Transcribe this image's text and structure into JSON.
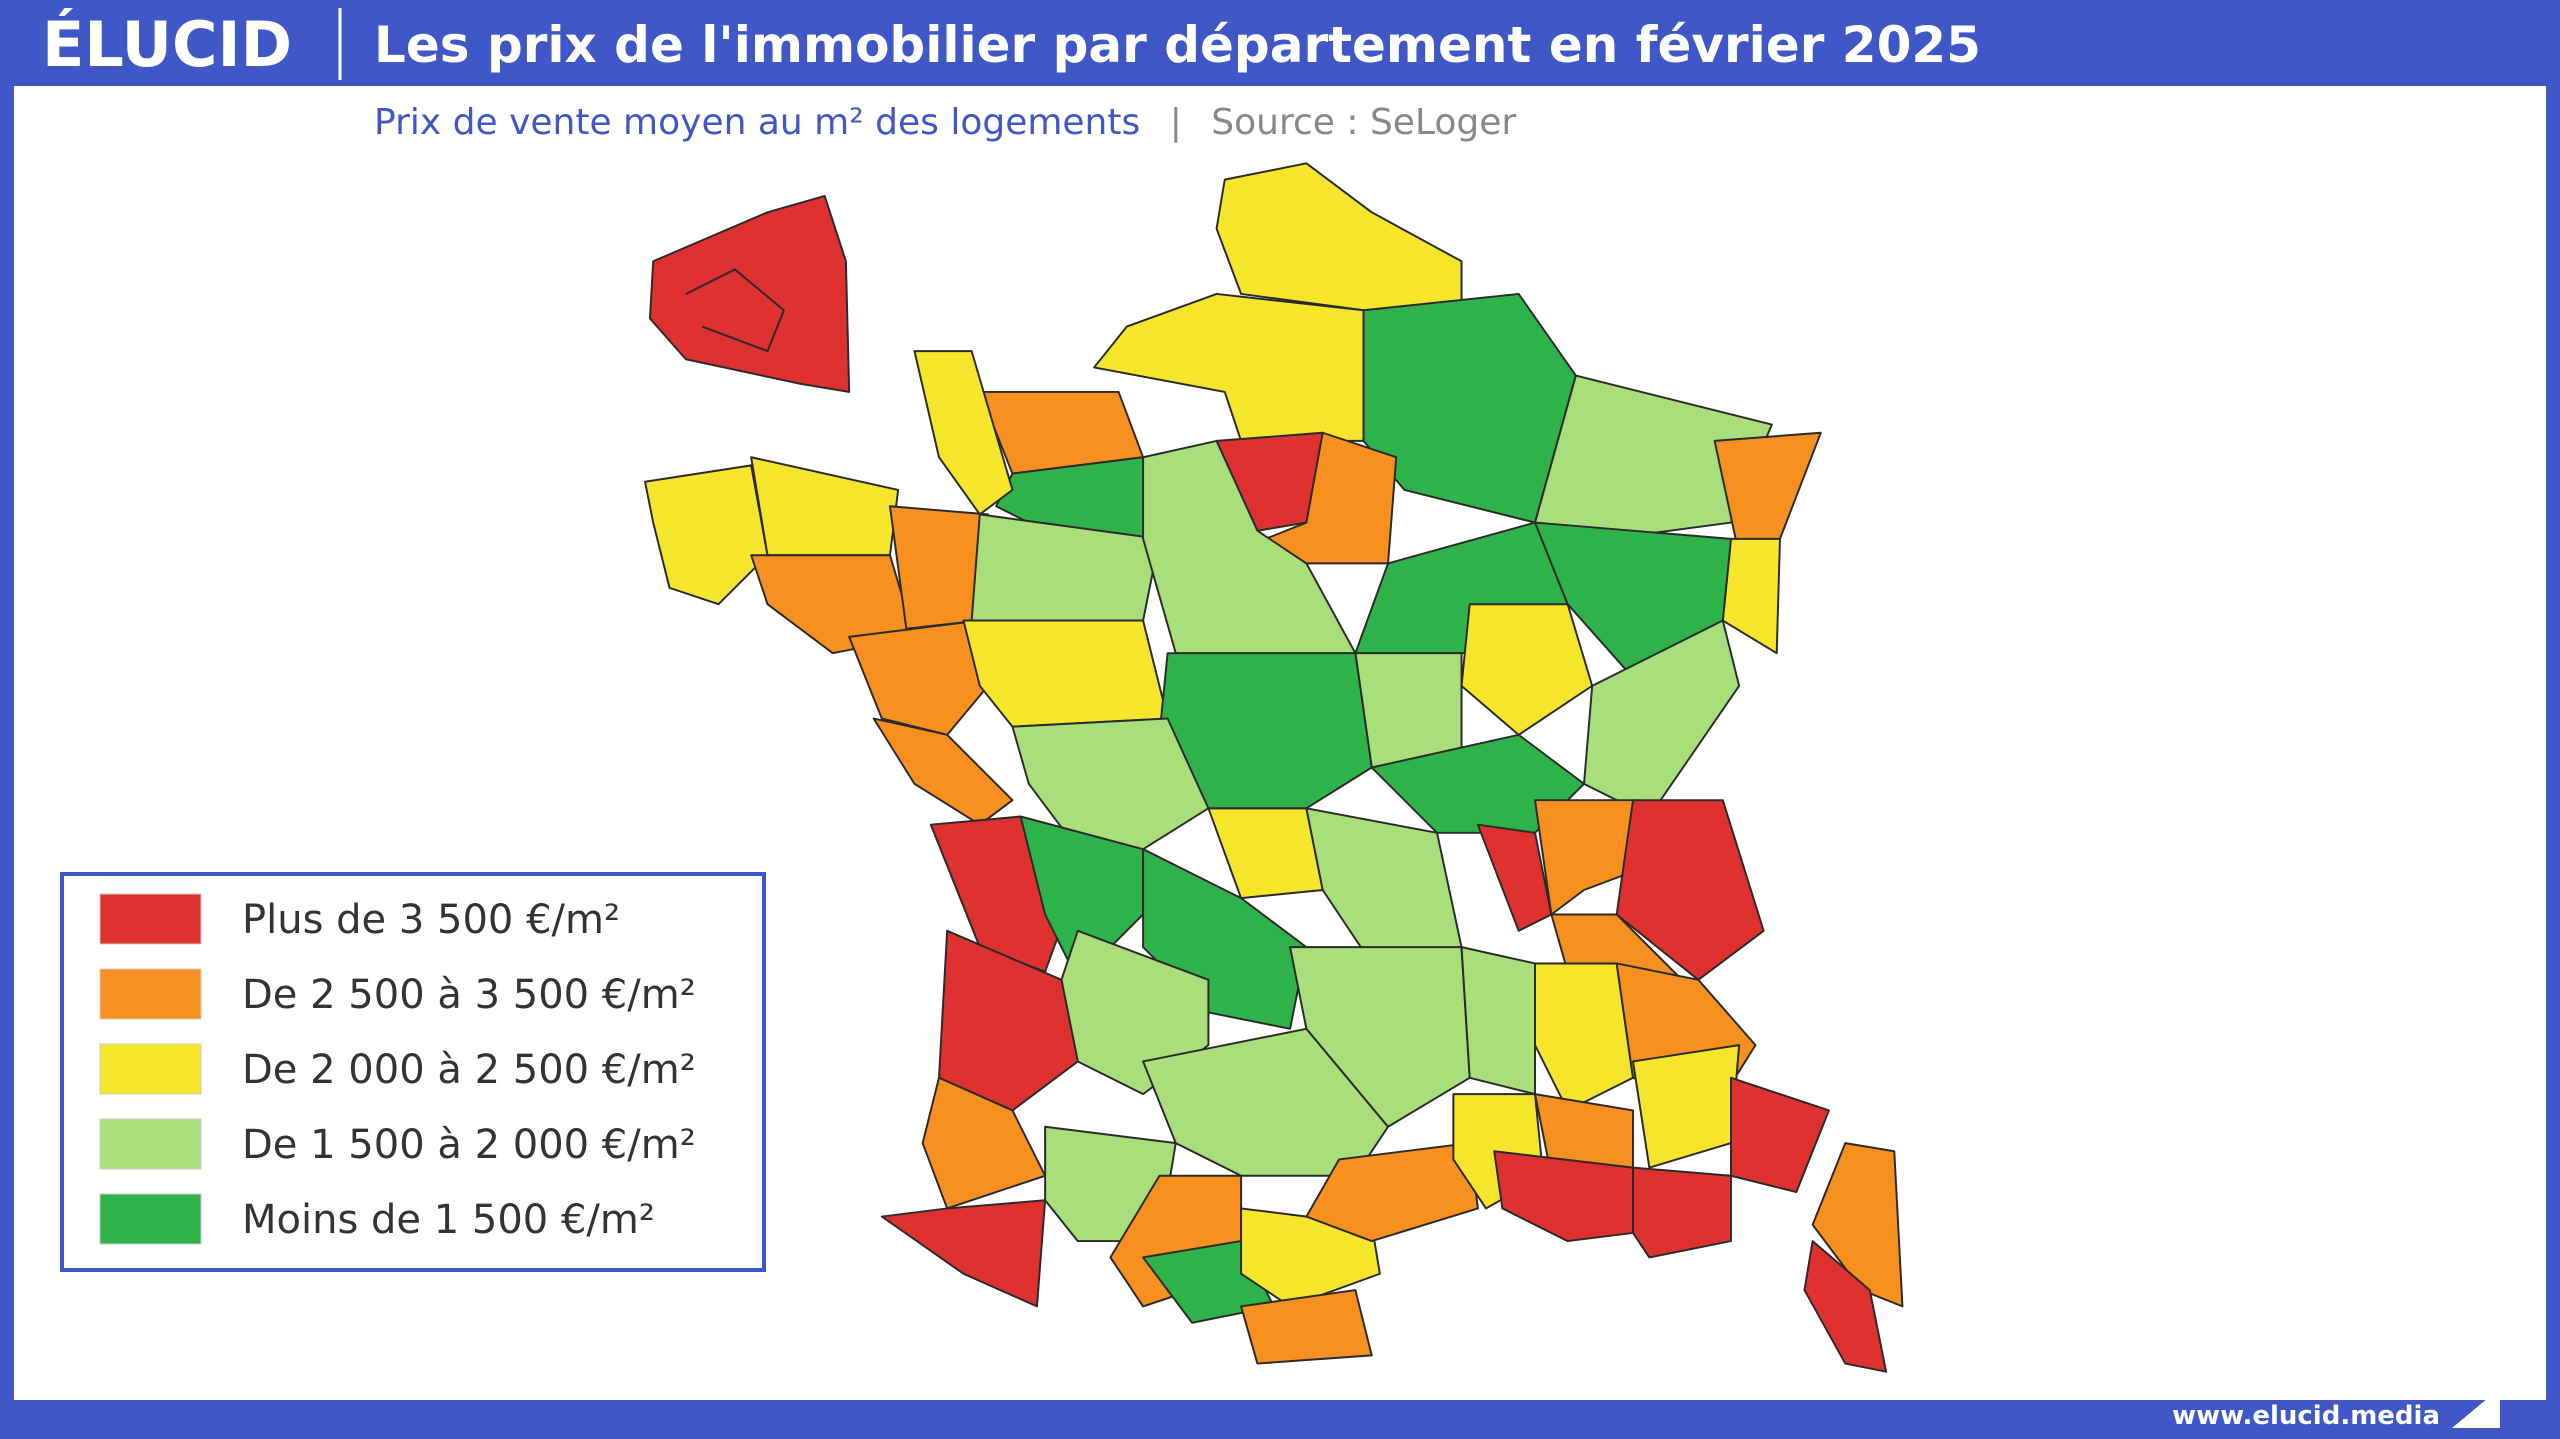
{
  "header": {
    "logo": "ÉLUCID",
    "title": "Les prix de l'immobilier par département en février 2025"
  },
  "subtitle": {
    "text": "Prix de vente moyen au m² des logements",
    "source": "Source : SeLoger"
  },
  "legend": {
    "items": [
      {
        "label": "Plus de 3 500 €/m²",
        "color": "#e03131"
      },
      {
        "label": "De 2 500 à 3 500 €/m²",
        "color": "#f7901e"
      },
      {
        "label": "De 2 000 à 2 500 €/m²",
        "color": "#f5e62c"
      },
      {
        "label": "De 1 500 à 2 000 €/m²",
        "color": "#a8df7a"
      },
      {
        "label": "Moins de 1 500 €/m²",
        "color": "#2eb34b"
      }
    ]
  },
  "footer": {
    "url": "www.elucid.media"
  }
}
